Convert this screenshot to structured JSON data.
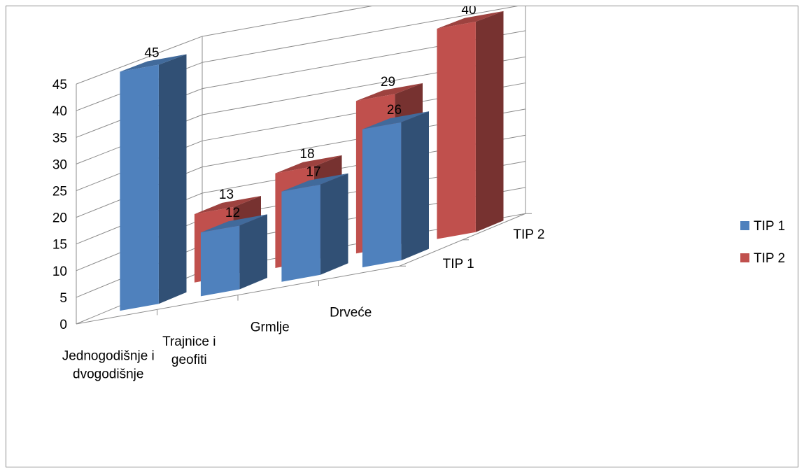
{
  "chart_data": {
    "type": "bar",
    "variant": "3d-column",
    "categories": [
      "Jednogodišnje i dvogodišnje",
      "Trajnice i geofiti",
      "Grmlje",
      "Drveće"
    ],
    "series": [
      {
        "name": "TIP 1",
        "values": [
          45,
          12,
          17,
          26
        ]
      },
      {
        "name": "TIP 2",
        "values": [
          13,
          18,
          29,
          40
        ]
      }
    ],
    "ylim": [
      0,
      45
    ],
    "yticks": [
      "0",
      "5",
      "10",
      "15",
      "20",
      "25",
      "30",
      "35",
      "40",
      "45"
    ],
    "depth_labels": [
      "TIP 2",
      "TIP 1"
    ],
    "grid": true,
    "legend": "right",
    "data_labels": true,
    "colors": {
      "TIP 1": "#4f81bd",
      "TIP 2": "#c0504d",
      "grid": "#8c8c8c"
    }
  }
}
